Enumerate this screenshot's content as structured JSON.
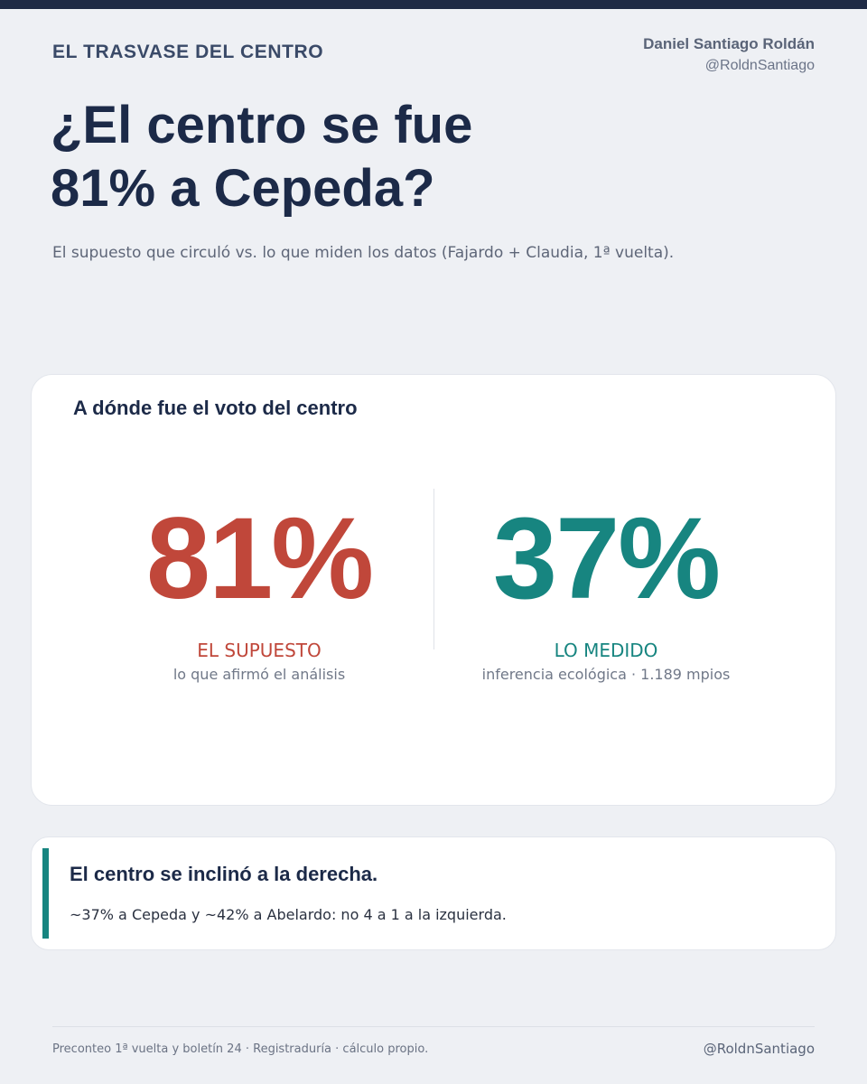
{
  "header": {
    "kicker": "EL TRASVASE DEL CENTRO",
    "author_name": "Daniel Santiago Roldán",
    "author_handle": "@RoldnSantiago"
  },
  "headline": {
    "line1": "¿El centro se fue",
    "line2": "81% a Cepeda?"
  },
  "subtitle": "El supuesto que circuló vs. lo que miden los datos (Fajardo + Claudia, 1ª vuelta).",
  "main_card": {
    "title": "A dónde fue el voto del centro",
    "stats": [
      {
        "value": "81%",
        "label": "EL SUPUESTO",
        "caption": "lo que afirmó el análisis",
        "color": "#c0473a"
      },
      {
        "value": "37%",
        "label": "LO MEDIDO",
        "caption": "inferencia ecológica · 1.189 mpios",
        "color": "#178580"
      }
    ]
  },
  "note_card": {
    "title": "El centro se inclinó a la derecha.",
    "text": "~37% a Cepeda y ~42% a Abelardo: no 4 a 1 a la izquierda.",
    "accent_color": "#178580"
  },
  "footer": {
    "source": "Preconteo 1ª vuelta y boletín 24 · Registraduría · cálculo propio.",
    "handle": "@RoldnSantiago"
  }
}
